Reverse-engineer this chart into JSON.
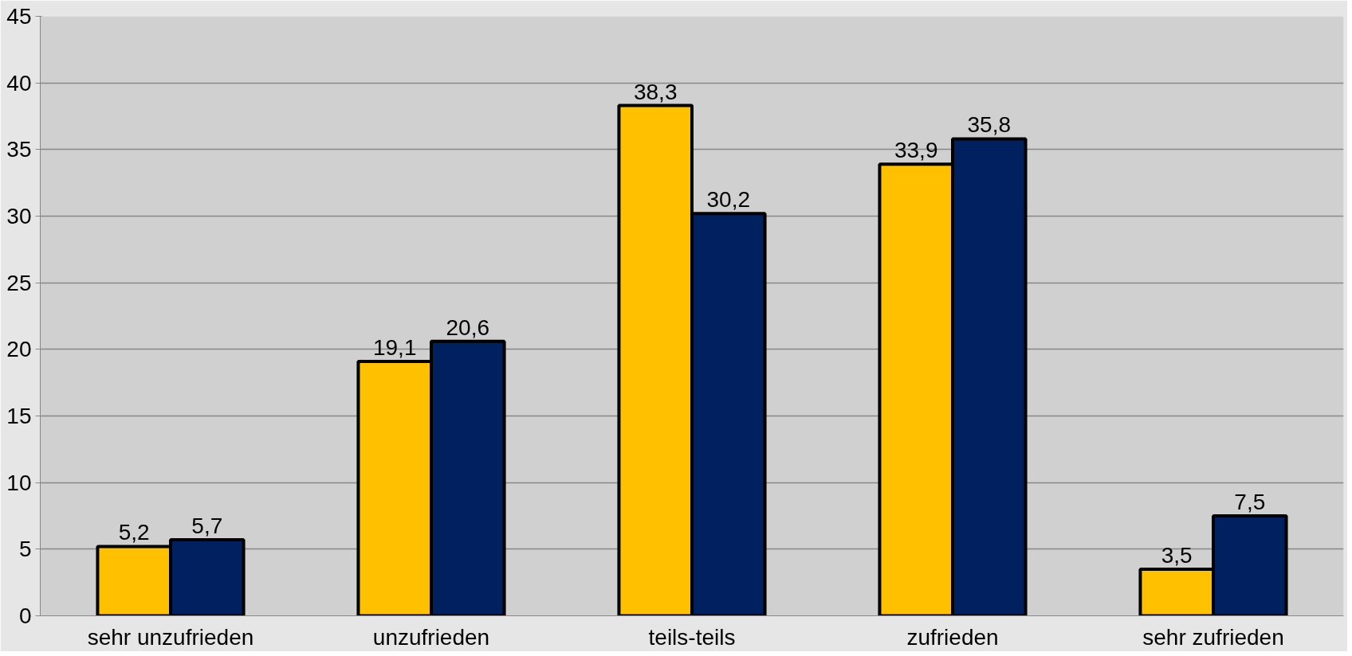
{
  "chart_data": {
    "type": "bar",
    "categories": [
      "sehr unzufrieden",
      "unzufrieden",
      "teils-teils",
      "zufrieden",
      "sehr zufrieden"
    ],
    "series": [
      {
        "color": "#ffc000",
        "values": [
          5.2,
          19.1,
          38.3,
          33.9,
          3.5
        ],
        "value_labels": [
          "5,2",
          "19,1",
          "38,3",
          "33,9",
          "3,5"
        ]
      },
      {
        "color": "#002060",
        "values": [
          5.7,
          20.6,
          30.2,
          35.8,
          7.5
        ],
        "value_labels": [
          "5,7",
          "20,6",
          "30,2",
          "35,8",
          "7,5"
        ]
      }
    ],
    "ylim": [
      0,
      45
    ],
    "yticks": [
      0,
      5,
      10,
      15,
      20,
      25,
      30,
      35,
      40,
      45
    ],
    "grid": "y"
  }
}
